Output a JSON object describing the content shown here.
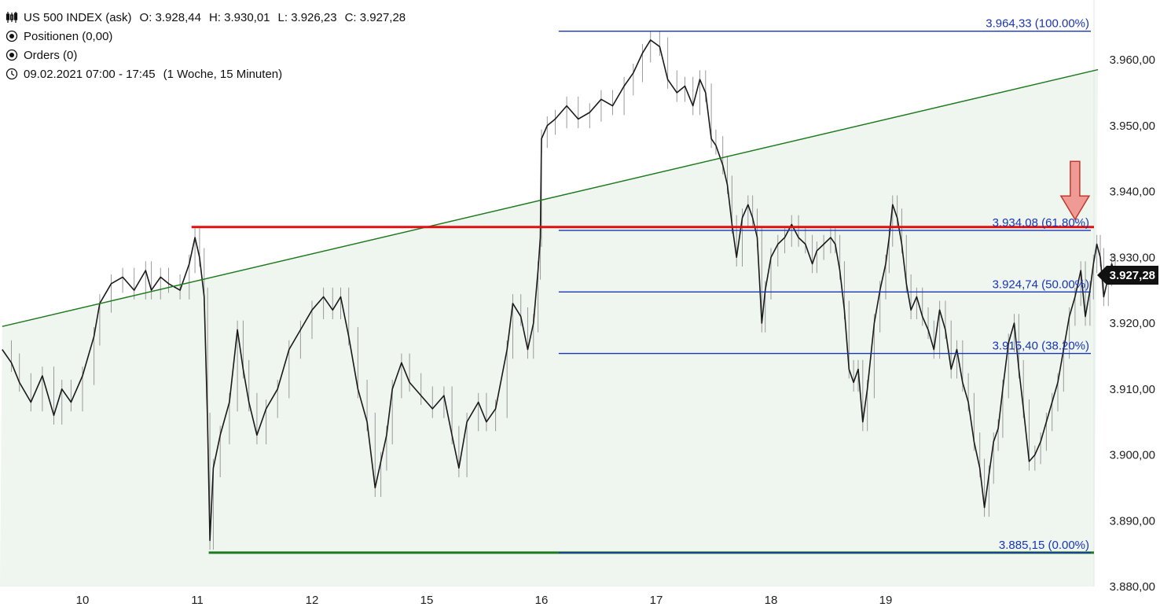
{
  "header": {
    "instrument": "US 500 INDEX (ask)",
    "open": "O: 3.928,44",
    "high": "H: 3.930,01",
    "low": "L: 3.926,23",
    "close": "C: 3.927,28",
    "positions": "Positionen (0,00)",
    "orders": "Orders (0)",
    "timerange": "09.02.2021 07:00 - 17:45",
    "interval": "(1 Woche, 15 Minuten)",
    "icons": [
      "candles-icon",
      "target-icon",
      "target-icon",
      "clock-icon"
    ]
  },
  "chart_data": {
    "type": "line",
    "title": "",
    "xlabel": "",
    "ylabel": "",
    "ylim": [
      3880,
      3966
    ],
    "yticks": [
      3880,
      3890,
      3900,
      3910,
      3920,
      3930,
      3940,
      3950,
      3960
    ],
    "ytick_labels": [
      "3.880,00",
      "3.890,00",
      "3.900,00",
      "3.910,00",
      "3.920,00",
      "3.930,00",
      "3.940,00",
      "3.950,00",
      "3.960,00"
    ],
    "xticks": [
      {
        "label": "10",
        "day": 1
      },
      {
        "label": "11",
        "day": 2
      },
      {
        "label": "12",
        "day": 3
      },
      {
        "label": "15",
        "day": 4
      },
      {
        "label": "16",
        "day": 5
      },
      {
        "label": "17",
        "day": 6
      },
      {
        "label": "18",
        "day": 7
      },
      {
        "label": "19",
        "day": 8
      }
    ],
    "xlim": [
      0.3,
      9.85
    ],
    "last_price": 3927.28,
    "last_price_label": "3.927,28",
    "price_series": {
      "name": "",
      "points": [
        [
          0.3,
          3916
        ],
        [
          0.38,
          3914
        ],
        [
          0.45,
          3911
        ],
        [
          0.55,
          3908
        ],
        [
          0.65,
          3912
        ],
        [
          0.75,
          3906
        ],
        [
          0.82,
          3910
        ],
        [
          0.9,
          3908
        ],
        [
          1.0,
          3912
        ],
        [
          1.1,
          3918
        ],
        [
          1.15,
          3923
        ],
        [
          1.25,
          3926
        ],
        [
          1.35,
          3927
        ],
        [
          1.45,
          3925
        ],
        [
          1.55,
          3928
        ],
        [
          1.6,
          3925
        ],
        [
          1.68,
          3927
        ],
        [
          1.75,
          3926
        ],
        [
          1.85,
          3925
        ],
        [
          1.93,
          3929
        ],
        [
          1.98,
          3933
        ],
        [
          2.02,
          3930
        ],
        [
          2.06,
          3924
        ],
        [
          2.09,
          3905
        ],
        [
          2.11,
          3887
        ],
        [
          2.14,
          3898
        ],
        [
          2.2,
          3903
        ],
        [
          2.28,
          3908
        ],
        [
          2.35,
          3919
        ],
        [
          2.4,
          3913
        ],
        [
          2.45,
          3908
        ],
        [
          2.52,
          3903
        ],
        [
          2.6,
          3907
        ],
        [
          2.7,
          3910
        ],
        [
          2.8,
          3916
        ],
        [
          2.9,
          3919
        ],
        [
          3.0,
          3922
        ],
        [
          3.1,
          3924
        ],
        [
          3.18,
          3922
        ],
        [
          3.25,
          3924
        ],
        [
          3.32,
          3918
        ],
        [
          3.4,
          3910
        ],
        [
          3.48,
          3905
        ],
        [
          3.55,
          3895
        ],
        [
          3.6,
          3899
        ],
        [
          3.65,
          3903
        ],
        [
          3.7,
          3910
        ],
        [
          3.78,
          3914
        ],
        [
          3.85,
          3911
        ],
        [
          3.95,
          3909
        ],
        [
          4.05,
          3907
        ],
        [
          4.15,
          3909
        ],
        [
          4.22,
          3903
        ],
        [
          4.28,
          3898
        ],
        [
          4.35,
          3905
        ],
        [
          4.45,
          3908
        ],
        [
          4.52,
          3905
        ],
        [
          4.6,
          3907
        ],
        [
          4.7,
          3916
        ],
        [
          4.75,
          3923
        ],
        [
          4.82,
          3921
        ],
        [
          4.88,
          3916
        ],
        [
          4.93,
          3920
        ],
        [
          4.97,
          3928
        ],
        [
          4.99,
          3933
        ],
        [
          5.0,
          3948
        ],
        [
          5.05,
          3950
        ],
        [
          5.12,
          3951
        ],
        [
          5.22,
          3953
        ],
        [
          5.32,
          3951
        ],
        [
          5.42,
          3952
        ],
        [
          5.52,
          3954
        ],
        [
          5.62,
          3953
        ],
        [
          5.72,
          3956
        ],
        [
          5.8,
          3958
        ],
        [
          5.88,
          3961
        ],
        [
          5.95,
          3963
        ],
        [
          6.03,
          3962
        ],
        [
          6.1,
          3957
        ],
        [
          6.18,
          3955
        ],
        [
          6.25,
          3956
        ],
        [
          6.32,
          3953
        ],
        [
          6.38,
          3957
        ],
        [
          6.43,
          3955
        ],
        [
          6.48,
          3948
        ],
        [
          6.52,
          3947
        ],
        [
          6.58,
          3944
        ],
        [
          6.62,
          3941
        ],
        [
          6.66,
          3935
        ],
        [
          6.7,
          3930
        ],
        [
          6.75,
          3936
        ],
        [
          6.8,
          3938
        ],
        [
          6.84,
          3936
        ],
        [
          6.88,
          3933
        ],
        [
          6.92,
          3920
        ],
        [
          6.95,
          3925
        ],
        [
          7.0,
          3930
        ],
        [
          7.06,
          3932
        ],
        [
          7.12,
          3933
        ],
        [
          7.18,
          3935
        ],
        [
          7.24,
          3933
        ],
        [
          7.3,
          3932
        ],
        [
          7.36,
          3929
        ],
        [
          7.4,
          3931
        ],
        [
          7.46,
          3932
        ],
        [
          7.52,
          3933
        ],
        [
          7.56,
          3932
        ],
        [
          7.6,
          3928
        ],
        [
          7.64,
          3922
        ],
        [
          7.68,
          3913
        ],
        [
          7.72,
          3911
        ],
        [
          7.76,
          3913
        ],
        [
          7.8,
          3905
        ],
        [
          7.84,
          3910
        ],
        [
          7.9,
          3920
        ],
        [
          7.95,
          3925
        ],
        [
          8.0,
          3929
        ],
        [
          8.03,
          3933
        ],
        [
          8.06,
          3938
        ],
        [
          8.1,
          3936
        ],
        [
          8.14,
          3932
        ],
        [
          8.18,
          3926
        ],
        [
          8.22,
          3922
        ],
        [
          8.27,
          3924
        ],
        [
          8.32,
          3921
        ],
        [
          8.37,
          3919
        ],
        [
          8.42,
          3916
        ],
        [
          8.47,
          3922
        ],
        [
          8.52,
          3919
        ],
        [
          8.57,
          3913
        ],
        [
          8.62,
          3916
        ],
        [
          8.67,
          3911
        ],
        [
          8.72,
          3908
        ],
        [
          8.77,
          3902
        ],
        [
          8.82,
          3898
        ],
        [
          8.86,
          3892
        ],
        [
          8.9,
          3897
        ],
        [
          8.94,
          3902
        ],
        [
          8.98,
          3904
        ],
        [
          9.02,
          3910
        ],
        [
          9.07,
          3917
        ],
        [
          9.12,
          3920
        ],
        [
          9.16,
          3913
        ],
        [
          9.2,
          3907
        ],
        [
          9.25,
          3899
        ],
        [
          9.3,
          3900
        ],
        [
          9.35,
          3902
        ],
        [
          9.4,
          3905
        ],
        [
          9.45,
          3908
        ],
        [
          9.5,
          3911
        ],
        [
          9.55,
          3916
        ],
        [
          9.6,
          3921
        ],
        [
          9.65,
          3924
        ],
        [
          9.7,
          3928
        ],
        [
          9.74,
          3921
        ],
        [
          9.78,
          3925
        ],
        [
          9.81,
          3929
        ],
        [
          9.84,
          3932
        ],
        [
          9.87,
          3930
        ],
        [
          9.9,
          3924
        ],
        [
          9.94,
          3927
        ],
        [
          9.97,
          3929
        ],
        [
          10.0,
          3927.28
        ]
      ]
    },
    "support_level": {
      "value": 3885.15,
      "from_day": 2.1,
      "color": "#1e7a1e"
    },
    "resistance_level": {
      "value": 3934.6,
      "from_day": 1.95,
      "color": "#e01010"
    },
    "trendline": {
      "from": [
        0.3,
        3919.5
      ],
      "to": [
        9.85,
        3958.5
      ],
      "color": "#1e7a1e"
    },
    "fibonacci": {
      "color": "#1a35b5",
      "from_day": 5.15,
      "levels": [
        {
          "value": 3964.33,
          "label": "3.964,33 (100.00%)"
        },
        {
          "value": 3934.08,
          "label": "3.934,08 (61.80%)"
        },
        {
          "value": 3924.74,
          "label": "3.924,74 (50.00%)"
        },
        {
          "value": 3915.4,
          "label": "3.915,40 (38.20%)"
        },
        {
          "value": 3885.15,
          "label": "3.885,15 (0.00%)"
        }
      ]
    },
    "annotation_arrow": {
      "day": 9.65,
      "value": 3935.5,
      "color": "#f09a95",
      "edge": "#c0392b"
    },
    "grid": false
  },
  "colors": {
    "fill": "#eef6ef",
    "price": "#1a1a1a",
    "price_wick": "#9a9a9a",
    "axis_text": "#222222",
    "last_price_bg": "#111111",
    "last_price_fg": "#ffffff"
  }
}
